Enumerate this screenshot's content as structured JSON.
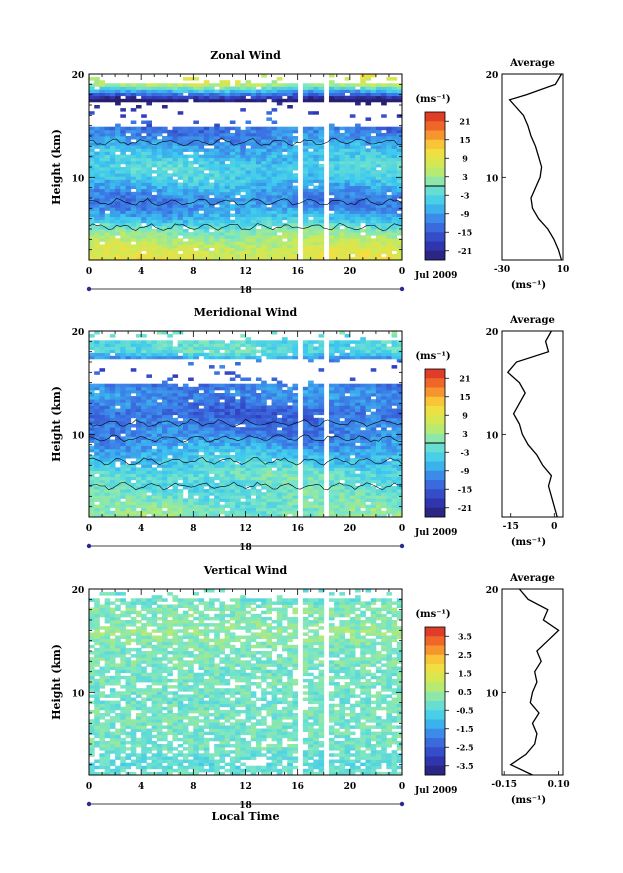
{
  "chart_data": [
    {
      "type": "heatmap",
      "title": "Zonal Wind",
      "ylabel": "Height (km)",
      "ylim": [
        2,
        20
      ],
      "y_ticks": [
        "20",
        "10"
      ],
      "x_ticks": [
        "0",
        "4",
        "8",
        "12",
        "16",
        "20",
        "0"
      ],
      "xlim": [
        0,
        24
      ],
      "day_label": "18",
      "date_label": "Jul 2009",
      "colorbar": {
        "unit": "(ms⁻¹)",
        "ticks": [
          "21",
          "15",
          "9",
          "3",
          "-3",
          "-9",
          "-15",
          "-21"
        ],
        "range": [
          -24,
          24
        ],
        "zero_line": true
      },
      "contour_levels": [
        0
      ],
      "gaps_hours": [
        16.3,
        18.2
      ],
      "mean_profile": [
        {
          "y": 2,
          "v": 9
        },
        {
          "y": 3,
          "v": 7
        },
        {
          "y": 4,
          "v": 4
        },
        {
          "y": 5,
          "v": 0
        },
        {
          "y": 6,
          "v": -6
        },
        {
          "y": 7,
          "v": -10
        },
        {
          "y": 8,
          "v": -11
        },
        {
          "y": 9,
          "v": -8
        },
        {
          "y": 10,
          "v": -5
        },
        {
          "y": 11,
          "v": -4
        },
        {
          "y": 12,
          "v": -6
        },
        {
          "y": 13,
          "v": -8
        },
        {
          "y": 14,
          "v": -11
        },
        {
          "y": 15,
          "v": -13
        },
        {
          "y": 16,
          "v": -16
        },
        {
          "y": 17,
          "v": -22
        },
        {
          "y": 17.5,
          "v": -25
        },
        {
          "y": 18,
          "v": -14
        },
        {
          "y": 19,
          "v": 5
        },
        {
          "y": 20,
          "v": 9
        }
      ],
      "average_panel": {
        "title": "Average",
        "xlim": [
          -30,
          10
        ],
        "x_ticks": [
          "-30",
          "10"
        ],
        "y_ticks": [
          "20",
          "10"
        ],
        "xlabel": "(ms⁻¹)"
      }
    },
    {
      "type": "heatmap",
      "title": "Meridional Wind",
      "ylabel": "Height (km)",
      "ylim": [
        2,
        20
      ],
      "y_ticks": [
        "20",
        "10"
      ],
      "x_ticks": [
        "0",
        "4",
        "8",
        "12",
        "16",
        "20",
        "0"
      ],
      "xlim": [
        0,
        24
      ],
      "day_label": "18",
      "date_label": "Jul 2009",
      "colorbar": {
        "unit": "(ms⁻¹)",
        "ticks": [
          "21",
          "15",
          "9",
          "3",
          "-3",
          "-9",
          "-15",
          "-21"
        ],
        "range": [
          -24,
          24
        ],
        "zero_line": true
      },
      "contour_levels": [
        0
      ],
      "gaps_hours": [
        16.3,
        18.2
      ],
      "mean_profile": [
        {
          "y": 2,
          "v": 1
        },
        {
          "y": 3,
          "v": 0
        },
        {
          "y": 4,
          "v": -1
        },
        {
          "y": 5,
          "v": -2
        },
        {
          "y": 6,
          "v": -1
        },
        {
          "y": 7,
          "v": -4
        },
        {
          "y": 8,
          "v": -6
        },
        {
          "y": 9,
          "v": -9
        },
        {
          "y": 10,
          "v": -11
        },
        {
          "y": 11,
          "v": -12
        },
        {
          "y": 12,
          "v": -14
        },
        {
          "y": 13,
          "v": -12
        },
        {
          "y": 14,
          "v": -10
        },
        {
          "y": 15,
          "v": -12
        },
        {
          "y": 16,
          "v": -16
        },
        {
          "y": 17,
          "v": -13
        },
        {
          "y": 18,
          "v": -2
        },
        {
          "y": 19,
          "v": -3
        },
        {
          "y": 20,
          "v": -1
        }
      ],
      "average_panel": {
        "title": "Average",
        "xlim": [
          -18,
          3
        ],
        "x_ticks": [
          "-15",
          "0"
        ],
        "y_ticks": [
          "20",
          "10"
        ],
        "xlabel": "(ms⁻¹)"
      }
    },
    {
      "type": "heatmap",
      "title": "Vertical Wind",
      "ylabel": "Height (km)",
      "xlabel": "Local Time",
      "ylim": [
        2,
        20
      ],
      "y_ticks": [
        "20",
        "10"
      ],
      "x_ticks": [
        "0",
        "4",
        "8",
        "12",
        "16",
        "20",
        "0"
      ],
      "xlim": [
        0,
        24
      ],
      "day_label": "18",
      "date_label": "Jul 2009",
      "colorbar": {
        "unit": "(ms⁻¹)",
        "ticks": [
          "3.5",
          "2.5",
          "1.5",
          "0.5",
          "-0.5",
          "-1.5",
          "-2.5",
          "-3.5"
        ],
        "range": [
          -4,
          4
        ],
        "zero_line": false
      },
      "contour_levels": [],
      "gaps_hours": [
        16.3,
        18.2
      ],
      "mean_profile": [
        {
          "y": 2,
          "v": -0.02
        },
        {
          "y": 3,
          "v": -0.12
        },
        {
          "y": 4,
          "v": -0.05
        },
        {
          "y": 5,
          "v": -0.01
        },
        {
          "y": 6,
          "v": 0.0
        },
        {
          "y": 7,
          "v": -0.02
        },
        {
          "y": 8,
          "v": 0.01
        },
        {
          "y": 9,
          "v": -0.03
        },
        {
          "y": 10,
          "v": -0.02
        },
        {
          "y": 11,
          "v": 0.0
        },
        {
          "y": 12,
          "v": -0.01
        },
        {
          "y": 13,
          "v": 0.02
        },
        {
          "y": 14,
          "v": 0.0
        },
        {
          "y": 15,
          "v": 0.05
        },
        {
          "y": 16,
          "v": 0.1
        },
        {
          "y": 17,
          "v": 0.03
        },
        {
          "y": 18,
          "v": 0.05
        },
        {
          "y": 19,
          "v": -0.04
        },
        {
          "y": 20,
          "v": -0.08
        }
      ],
      "average_panel": {
        "title": "Average",
        "xlim": [
          -0.16,
          0.12
        ],
        "x_ticks": [
          "-0.15",
          "0.10"
        ],
        "y_ticks": [
          "20",
          "10"
        ],
        "xlabel": "(ms⁻¹)"
      }
    }
  ]
}
